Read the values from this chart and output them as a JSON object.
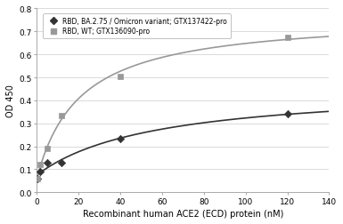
{
  "title": "",
  "xlabel": "Recombinant human ACE2 (ECD) protein (nM)",
  "ylabel": "OD 450",
  "xlim": [
    0,
    140
  ],
  "ylim": [
    0,
    0.8
  ],
  "xticks": [
    0,
    20,
    40,
    60,
    80,
    100,
    120,
    140
  ],
  "yticks": [
    0,
    0.1,
    0.2,
    0.3,
    0.4,
    0.5,
    0.6,
    0.7,
    0.8
  ],
  "series1_label": "RBD, BA.2.75 / Omicron variant; GTX137422-pro",
  "series2_label": "RBD, WT; GTX136090-pro",
  "series1_x": [
    0.5,
    1.5,
    5,
    12,
    40,
    120
  ],
  "series1_y": [
    0.06,
    0.09,
    0.13,
    0.13,
    0.235,
    0.34
  ],
  "series2_x": [
    0.5,
    1.5,
    5,
    12,
    40,
    120
  ],
  "series2_y": [
    0.06,
    0.12,
    0.19,
    0.335,
    0.505,
    0.675
  ],
  "series1_color": "#333333",
  "series2_color": "#999999",
  "background_color": "#ffffff",
  "grid_color": "#cccccc"
}
